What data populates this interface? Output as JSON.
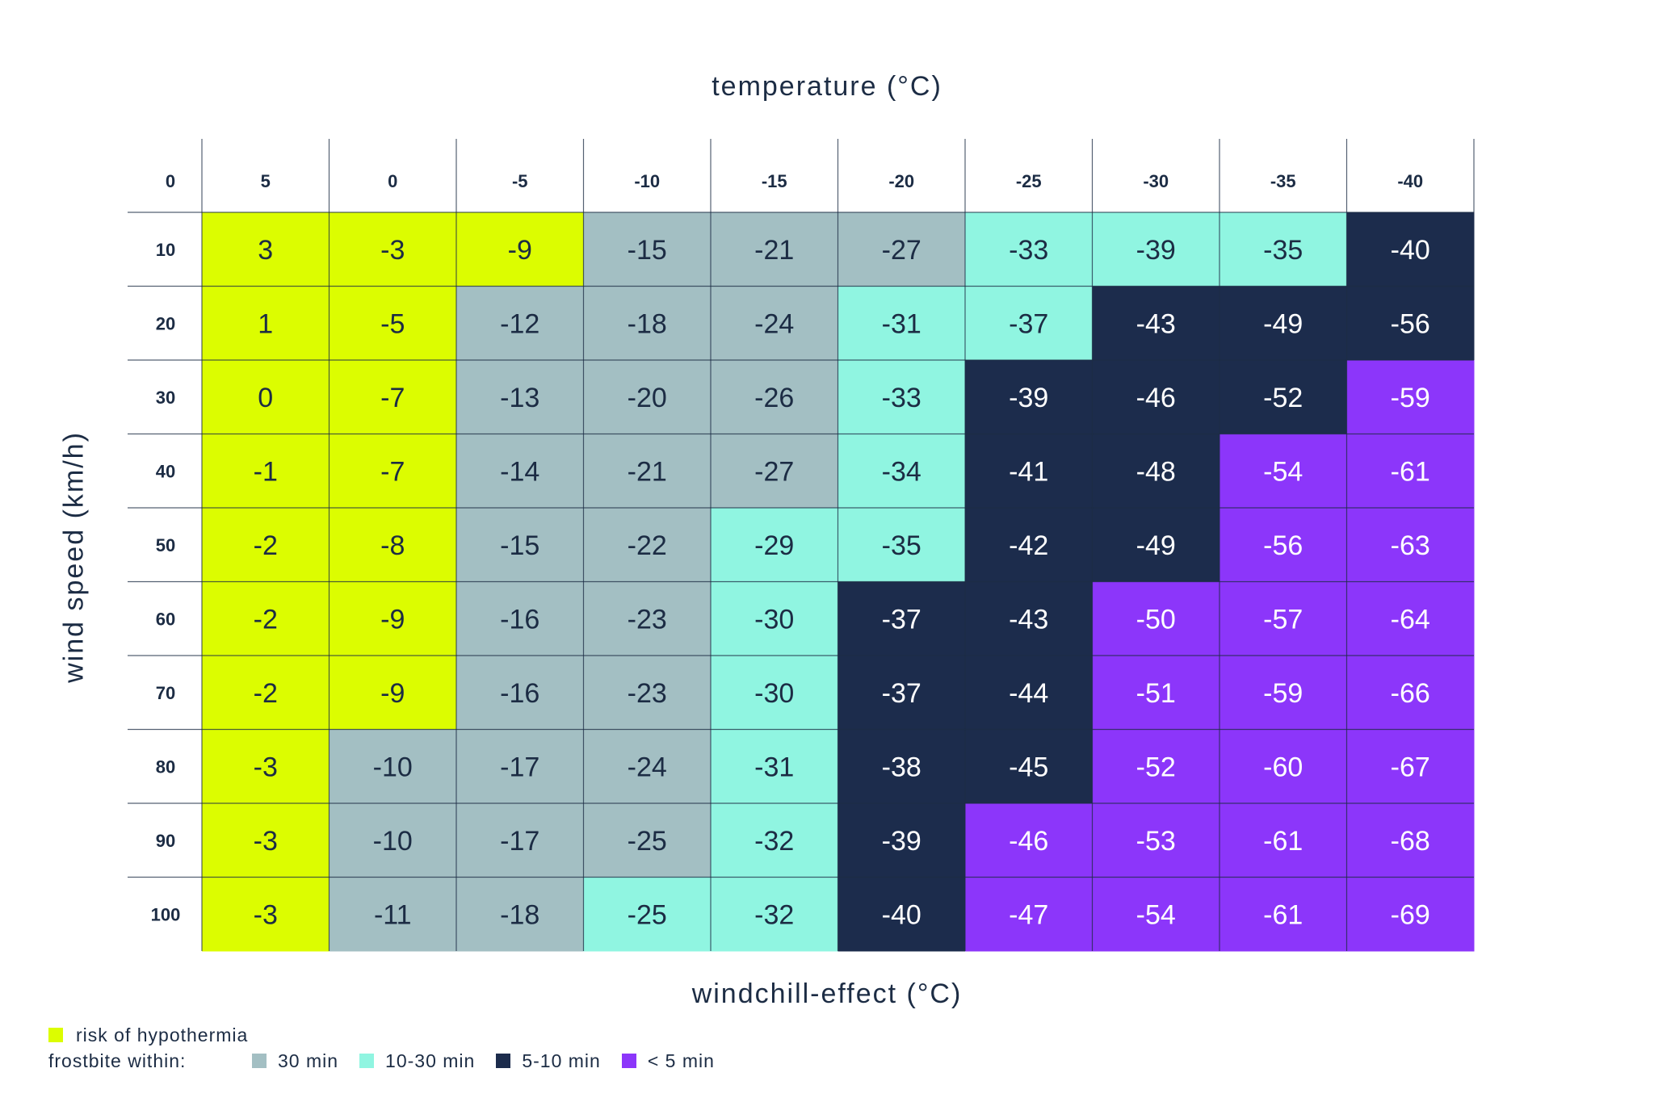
{
  "header": {
    "top_title": "temperature (°C)",
    "bottom_title": "windchill-effect (°C)",
    "y_title": "wind speed (km/h)"
  },
  "chart_data": {
    "type": "heatmap",
    "corner_label": "0",
    "temperatures": [
      "5",
      "0",
      "-5",
      "-10",
      "-15",
      "-20",
      "-25",
      "-30",
      "-35",
      "-40"
    ],
    "wind_speeds": [
      "10",
      "20",
      "30",
      "40",
      "50",
      "60",
      "70",
      "80",
      "90",
      "100"
    ],
    "values": [
      [
        3,
        -3,
        -9,
        -15,
        -21,
        -27,
        -33,
        -39,
        -35,
        -40
      ],
      [
        1,
        -5,
        -12,
        -18,
        -24,
        -31,
        -37,
        -43,
        -49,
        -56
      ],
      [
        0,
        -7,
        -13,
        -20,
        -26,
        -33,
        -39,
        -46,
        -52,
        -59
      ],
      [
        -1,
        -7,
        -14,
        -21,
        -27,
        -34,
        -41,
        -48,
        -54,
        -61
      ],
      [
        -2,
        -8,
        -15,
        -22,
        -29,
        -35,
        -42,
        -49,
        -56,
        -63
      ],
      [
        -2,
        -9,
        -16,
        -23,
        -30,
        -37,
        -43,
        -50,
        -57,
        -64
      ],
      [
        -2,
        -9,
        -16,
        -23,
        -30,
        -37,
        -44,
        -51,
        -59,
        -66
      ],
      [
        -3,
        -10,
        -17,
        -24,
        -31,
        -38,
        -45,
        -52,
        -60,
        -67
      ],
      [
        -3,
        -10,
        -17,
        -25,
        -32,
        -39,
        -46,
        -53,
        -61,
        -68
      ],
      [
        -3,
        -11,
        -18,
        -25,
        -32,
        -40,
        -47,
        -54,
        -61,
        -69
      ]
    ],
    "zones": [
      {
        "name": "risk of hypothermia",
        "color": "#dcfd00"
      },
      {
        "name": "30 min",
        "color": "#a3bfc3"
      },
      {
        "name": "10-30 min",
        "color": "#90f5e1"
      },
      {
        "name": "5-10 min",
        "color": "#1c2c4c"
      },
      {
        "name": "< 5 min",
        "color": "#8c36fa"
      }
    ],
    "zone_map": [
      [
        0,
        0,
        0,
        1,
        1,
        1,
        2,
        2,
        2,
        3
      ],
      [
        0,
        0,
        1,
        1,
        1,
        2,
        2,
        3,
        3,
        3
      ],
      [
        0,
        0,
        1,
        1,
        1,
        2,
        3,
        3,
        3,
        4
      ],
      [
        0,
        0,
        1,
        1,
        1,
        2,
        3,
        3,
        4,
        4
      ],
      [
        0,
        0,
        1,
        1,
        2,
        2,
        3,
        3,
        4,
        4
      ],
      [
        0,
        0,
        1,
        1,
        2,
        3,
        3,
        4,
        4,
        4
      ],
      [
        0,
        0,
        1,
        1,
        2,
        3,
        3,
        4,
        4,
        4
      ],
      [
        0,
        1,
        1,
        1,
        2,
        3,
        3,
        4,
        4,
        4
      ],
      [
        0,
        1,
        1,
        1,
        2,
        3,
        4,
        4,
        4,
        4
      ],
      [
        0,
        1,
        1,
        2,
        2,
        3,
        4,
        4,
        4,
        4
      ]
    ]
  },
  "legend": {
    "hypothermia_label": "risk of hypothermia",
    "frostbite_label": "frostbite within:",
    "items": [
      {
        "label": "30 min",
        "color": "#a3bfc3"
      },
      {
        "label": "10-30 min",
        "color": "#90f5e1"
      },
      {
        "label": "5-10 min",
        "color": "#1c2c4c"
      },
      {
        "label": "< 5 min",
        "color": "#8c36fa"
      }
    ],
    "hypothermia_color": "#dcfd00"
  }
}
